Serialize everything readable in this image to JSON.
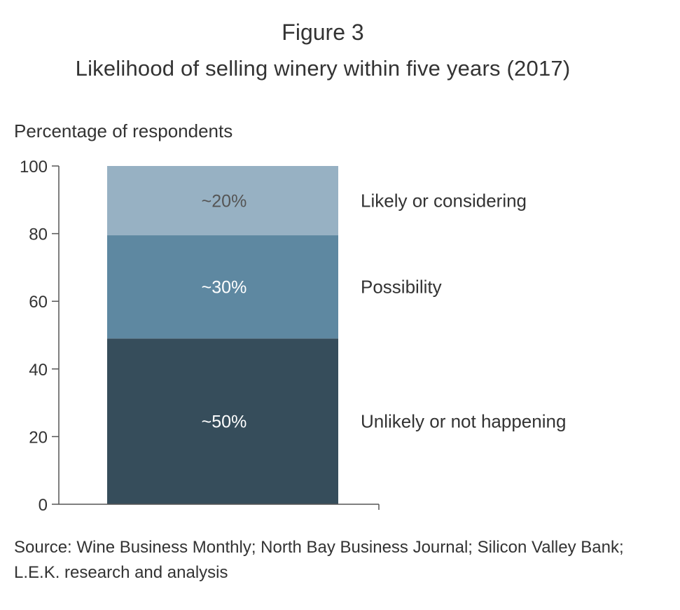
{
  "title": "Figure 3",
  "subtitle": "Likelihood of selling winery within five years (2017)",
  "source": [
    "Source: Wine Business Monthly; North Bay Business Journal; Silicon Valley Bank;",
    "L.E.K. research and analysis"
  ],
  "chart_data": {
    "type": "bar",
    "stacked": true,
    "ylabel": "Percentage of respondents",
    "ylim": [
      0,
      100
    ],
    "yticks": [
      "0",
      "20",
      "40",
      "60",
      "80",
      "100"
    ],
    "grid": false,
    "series": [
      {
        "name": "Unlikely or not happening",
        "value": 49,
        "label": "~50%",
        "color": "#364d5b",
        "text_color": "#ffffff"
      },
      {
        "name": "Possibility",
        "value": 30.5,
        "label": "~30%",
        "color": "#5e88a1",
        "text_color": "#ffffff"
      },
      {
        "name": "Likely or considering",
        "value": 20.5,
        "label": "~20%",
        "color": "#97b1c3",
        "text_color": "#555555"
      }
    ]
  }
}
